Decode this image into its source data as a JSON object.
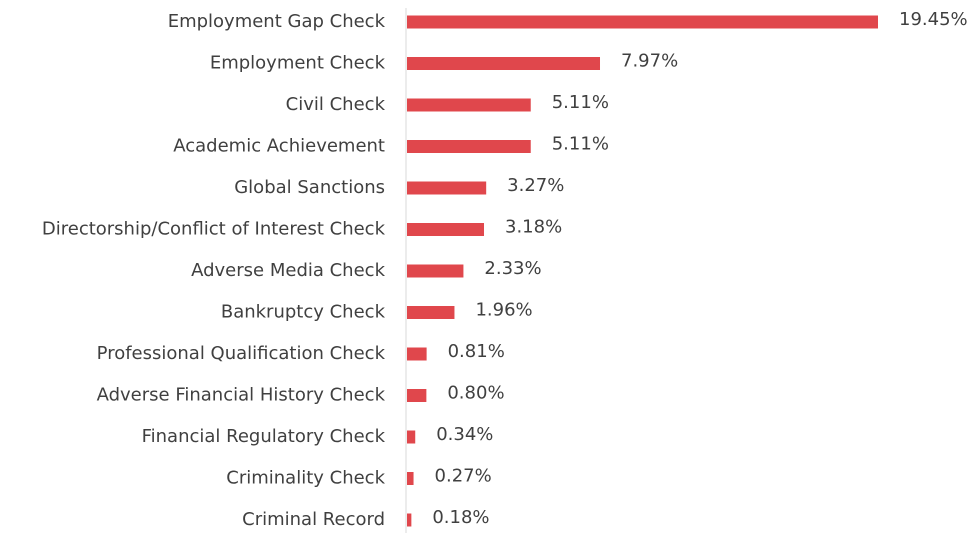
{
  "chart_data": {
    "type": "hbar",
    "categories": [
      "Employment Gap Check",
      "Employment Check",
      "Civil Check",
      "Academic Achievement",
      "Global Sanctions",
      "Directorship/Conflict of Interest Check",
      "Adverse Media Check",
      "Bankruptcy Check",
      "Professional Qualification Check",
      "Adverse Financial History Check",
      "Financial Regulatory Check",
      "Criminality Check",
      "Criminal Record"
    ],
    "values": [
      19.45,
      7.97,
      5.11,
      5.11,
      3.27,
      3.18,
      2.33,
      1.96,
      0.81,
      0.8,
      0.34,
      0.27,
      0.18
    ],
    "value_labels": [
      "19.45%",
      "7.97%",
      "5.11%",
      "5.11%",
      "3.27%",
      "3.18%",
      "2.33%",
      "1.96%",
      "0.81%",
      "0.80%",
      "0.34%",
      "0.27%",
      "0.18%"
    ],
    "color": "#e0474c"
  }
}
